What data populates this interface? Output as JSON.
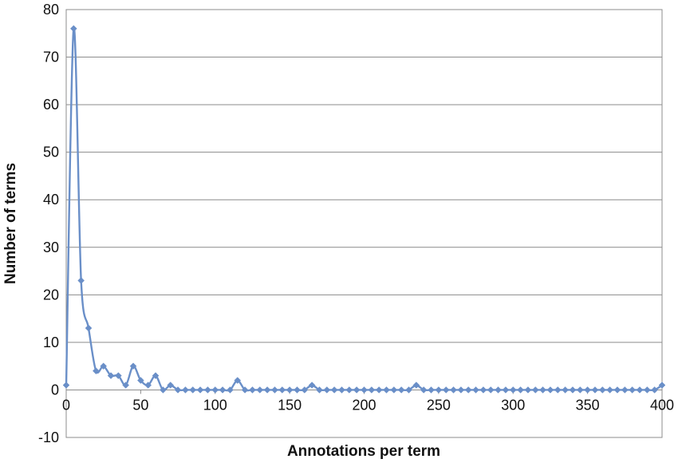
{
  "chart_data": {
    "type": "line",
    "title": "",
    "xlabel": "Annotations per term",
    "ylabel": "Number of terms",
    "xlim": [
      0,
      400
    ],
    "ylim": [
      -10,
      80
    ],
    "x_ticks": [
      0,
      50,
      100,
      150,
      200,
      250,
      300,
      350,
      400
    ],
    "y_ticks": [
      -10,
      0,
      10,
      20,
      30,
      40,
      50,
      60,
      70,
      80
    ],
    "grid": "horizontal",
    "legend": "none",
    "series_color": "#6a8fc8",
    "series": [
      {
        "x": [
          0,
          5,
          10,
          15,
          20,
          25,
          30,
          35,
          40,
          45,
          50,
          55,
          60,
          65,
          70,
          75,
          80,
          85,
          90,
          95,
          100,
          105,
          110,
          115,
          120,
          125,
          130,
          135,
          140,
          145,
          150,
          155,
          160,
          165,
          170,
          175,
          180,
          185,
          190,
          195,
          200,
          205,
          210,
          215,
          220,
          225,
          230,
          235,
          240,
          245,
          250,
          255,
          260,
          265,
          270,
          275,
          280,
          285,
          290,
          295,
          300,
          305,
          310,
          315,
          320,
          325,
          330,
          335,
          340,
          345,
          350,
          355,
          360,
          365,
          370,
          375,
          380,
          385,
          390,
          395,
          400
        ],
        "values": [
          1,
          76,
          23,
          13,
          4,
          5,
          3,
          3,
          1,
          5,
          2,
          1,
          3,
          0,
          1,
          0,
          0,
          0,
          0,
          0,
          0,
          0,
          0,
          2,
          0,
          0,
          0,
          0,
          0,
          0,
          0,
          0,
          0,
          1,
          0,
          0,
          0,
          0,
          0,
          0,
          0,
          0,
          0,
          0,
          0,
          0,
          0,
          1,
          0,
          0,
          0,
          0,
          0,
          0,
          0,
          0,
          0,
          0,
          0,
          0,
          0,
          0,
          0,
          0,
          0,
          0,
          0,
          0,
          0,
          0,
          0,
          0,
          0,
          0,
          0,
          0,
          0,
          0,
          0,
          0,
          1
        ]
      }
    ]
  }
}
